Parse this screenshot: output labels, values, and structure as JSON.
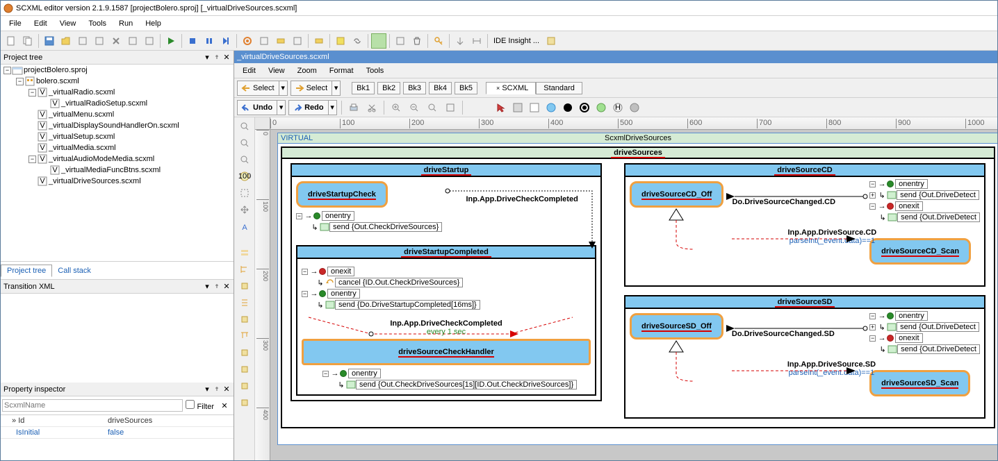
{
  "window": {
    "title": "SCXML editor version 2.1.9.1587 [projectBolero.sproj] [_virtualDriveSources.scxml]"
  },
  "menubar": [
    "File",
    "Edit",
    "View",
    "Tools",
    "Run",
    "Help"
  ],
  "toolbar": {
    "ide_insight": "IDE Insight ..."
  },
  "project_tree": {
    "title": "Project tree",
    "root": "projectBolero.sproj",
    "items": [
      {
        "indent": 0,
        "toggle": "v",
        "icon": "proj",
        "label": "projectBolero.sproj"
      },
      {
        "indent": 1,
        "toggle": "v",
        "icon": "scx",
        "label": "bolero.scxml"
      },
      {
        "indent": 2,
        "toggle": "v",
        "icon": "v",
        "label": "_virtualRadio.scxml"
      },
      {
        "indent": 3,
        "toggle": "",
        "icon": "v",
        "label": "_virtualRadioSetup.scxml"
      },
      {
        "indent": 2,
        "toggle": "",
        "icon": "v",
        "label": "_virtualMenu.scxml"
      },
      {
        "indent": 2,
        "toggle": "",
        "icon": "v",
        "label": "_virtualDisplaySoundHandlerOn.scxml"
      },
      {
        "indent": 2,
        "toggle": "",
        "icon": "v",
        "label": "_virtualSetup.scxml"
      },
      {
        "indent": 2,
        "toggle": "",
        "icon": "v",
        "label": "_virtualMedia.scxml"
      },
      {
        "indent": 2,
        "toggle": "v",
        "icon": "v",
        "label": "_virtualAudioModeMedia.scxml"
      },
      {
        "indent": 3,
        "toggle": "",
        "icon": "v",
        "label": "_virtualMediaFuncBtns.scxml"
      },
      {
        "indent": 2,
        "toggle": "",
        "icon": "v",
        "label": "_virtualDriveSources.scxml"
      }
    ]
  },
  "left_tabs": {
    "a": "Project tree",
    "b": "Call stack"
  },
  "transition_panel": {
    "title": "Transition XML"
  },
  "inspector": {
    "title": "Property inspector",
    "filter_placeholder": "ScxmlName",
    "filter_label": "Filter",
    "rows": [
      {
        "k": "Id",
        "v": "driveSources",
        "bold": true
      },
      {
        "k": "IsInitial",
        "v": "false",
        "link": true
      }
    ]
  },
  "doc": {
    "tab": "_virtualDriveSources.scxml",
    "menu": [
      "Edit",
      "View",
      "Zoom",
      "Format",
      "Tools"
    ],
    "select1": "Select",
    "select2": "Select",
    "undo": "Undo",
    "redo": "Redo",
    "bks": [
      "Bk1",
      "Bk2",
      "Bk3",
      "Bk4",
      "Bk5"
    ],
    "shape_tabs": [
      "SCXML",
      "Standard"
    ]
  },
  "ruler_h": [
    0,
    100,
    200,
    300,
    400,
    500,
    600,
    700,
    800,
    900,
    1000
  ],
  "ruler_v": [
    0,
    100,
    200,
    300,
    400
  ],
  "diagram": {
    "virtual": "VIRTUAL",
    "root_label_right": "ScxmlDriveSources",
    "drive_sources": "driveSources",
    "driveStartup": {
      "title": "driveStartup",
      "check": "driveStartupCheck",
      "onentry": "onentry",
      "send1": "send {Out.CheckDriveSources}",
      "trans1": "Inp.App.DriveCheckCompleted",
      "completed_title": "driveStartupCompleted",
      "onexit": "onexit",
      "cancel": "cancel {ID.Out.CheckDriveSources}",
      "onentry2": "onentry",
      "send2": "send {Do.DriveStartupCompleted[16ms]}",
      "trans2": "Inp.App.DriveCheckCompleted",
      "trans2_sub": "every 1 sec",
      "handler": "driveSourceCheckHandler",
      "onentry3": "onentry",
      "send3": "send {Out.CheckDriveSources[1s][ID.Out.CheckDriveSources]}"
    },
    "cd": {
      "title": "driveSourceCD",
      "off": "driveSourceCD_Off",
      "do": "Do.DriveSourceChanged.CD",
      "onentry": "onentry",
      "send1": "send {Out.DriveDetect",
      "onexit": "onexit",
      "send2": "send {Out.DriveDetect",
      "inp": "Inp.App.DriveSource.CD",
      "cond": "parseInt(_event.data)==1",
      "scan": "driveSourceCD_Scan"
    },
    "sd": {
      "title": "driveSourceSD",
      "off": "driveSourceSD_Off",
      "do": "Do.DriveSourceChanged.SD",
      "onentry": "onentry",
      "send1": "send {Out.DriveDetect",
      "onexit": "onexit",
      "send2": "send {Out.DriveDetect",
      "inp": "Inp.App.DriveSource.SD",
      "cond": "parseInt(_event.data)==1",
      "scan": "driveSourceSD_Scan"
    }
  },
  "colors": {
    "state_fill": "#82c8f0",
    "state_border": "#f0a040",
    "underline": "#d60000",
    "green_band": "#d5ebd5",
    "link": "#1a5fb4"
  }
}
